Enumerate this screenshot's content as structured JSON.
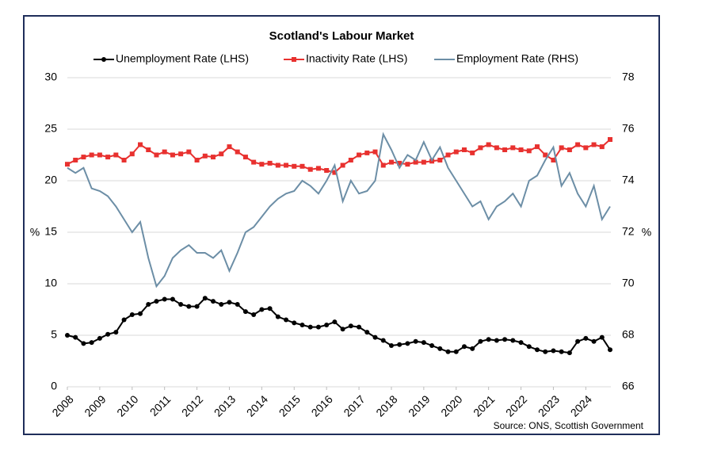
{
  "chart_data": {
    "type": "line",
    "title": "Scotland's Labour Market",
    "source": "Source: ONS, Scottish Government",
    "ylabel": "%",
    "y2label": "%",
    "x": [
      2008,
      2008.25,
      2008.5,
      2008.75,
      2009,
      2009.25,
      2009.5,
      2009.75,
      2010,
      2010.25,
      2010.5,
      2010.75,
      2011,
      2011.25,
      2011.5,
      2011.75,
      2012,
      2012.25,
      2012.5,
      2012.75,
      2013,
      2013.25,
      2013.5,
      2013.75,
      2014,
      2014.25,
      2014.5,
      2014.75,
      2015,
      2015.25,
      2015.5,
      2015.75,
      2016,
      2016.25,
      2016.5,
      2016.75,
      2017,
      2017.25,
      2017.5,
      2017.75,
      2018,
      2018.25,
      2018.5,
      2018.75,
      2019,
      2019.25,
      2019.5,
      2019.75,
      2020,
      2020.25,
      2020.5,
      2020.75,
      2021,
      2021.25,
      2021.5,
      2021.75,
      2022,
      2022.25,
      2022.5,
      2022.75,
      2023,
      2023.25,
      2023.5,
      2023.75,
      2024,
      2024.25,
      2024.5,
      2024.75
    ],
    "xlim": [
      2008,
      2024.75
    ],
    "xticks": [
      2008,
      2009,
      2010,
      2011,
      2012,
      2013,
      2014,
      2015,
      2016,
      2017,
      2018,
      2019,
      2020,
      2021,
      2022,
      2023,
      2024
    ],
    "ylim": [
      0,
      30
    ],
    "yticks": [
      0,
      5,
      10,
      15,
      20,
      25,
      30
    ],
    "y2lim": [
      66,
      78
    ],
    "y2ticks": [
      66,
      68,
      70,
      72,
      74,
      76,
      78
    ],
    "grid": true,
    "series": [
      {
        "name": "Unemployment Rate (LHS)",
        "color": "#000000",
        "marker": "circle",
        "values": [
          5.0,
          4.8,
          4.2,
          4.3,
          4.7,
          5.1,
          5.3,
          6.5,
          7.0,
          7.1,
          8.0,
          8.3,
          8.5,
          8.5,
          8.0,
          7.8,
          7.8,
          8.6,
          8.3,
          8.0,
          8.2,
          8.0,
          7.3,
          7.0,
          7.5,
          7.6,
          6.8,
          6.5,
          6.2,
          6.0,
          5.8,
          5.8,
          6.0,
          6.3,
          5.6,
          5.9,
          5.8,
          5.3,
          4.8,
          4.5,
          4.0,
          4.1,
          4.2,
          4.4,
          4.3,
          4.0,
          3.7,
          3.4,
          3.4,
          3.9,
          3.7,
          4.4,
          4.6,
          4.5,
          4.6,
          4.5,
          4.3,
          3.9,
          3.6,
          3.4,
          3.5,
          3.4,
          3.3,
          4.4,
          4.7,
          4.4,
          4.8,
          3.6
        ]
      },
      {
        "name": "Inactivity Rate (LHS)",
        "color": "#e8312f",
        "marker": "square",
        "values": [
          21.6,
          22.0,
          22.3,
          22.5,
          22.5,
          22.3,
          22.5,
          22.0,
          22.6,
          23.5,
          23.0,
          22.5,
          22.8,
          22.5,
          22.6,
          22.8,
          22.0,
          22.4,
          22.3,
          22.6,
          23.3,
          22.8,
          22.3,
          21.8,
          21.6,
          21.7,
          21.5,
          21.5,
          21.4,
          21.4,
          21.1,
          21.2,
          21.0,
          20.8,
          21.5,
          22.0,
          22.5,
          22.7,
          22.8,
          21.5,
          21.8,
          21.7,
          21.6,
          21.8,
          21.8,
          21.9,
          22.0,
          22.5,
          22.8,
          23.0,
          22.7,
          23.2,
          23.5,
          23.2,
          23.0,
          23.2,
          23.0,
          22.9,
          23.3,
          22.5,
          22.0,
          23.2,
          23.0,
          23.5,
          23.2,
          23.5,
          23.3,
          24.0
        ]
      },
      {
        "name": "Employment Rate (RHS)",
        "color": "#6c8ea6",
        "axis": "y2",
        "values": [
          74.5,
          74.3,
          74.5,
          73.7,
          73.6,
          73.4,
          73.0,
          72.5,
          72.0,
          72.4,
          71.0,
          69.9,
          70.3,
          71.0,
          71.3,
          71.5,
          71.2,
          71.2,
          71.0,
          71.3,
          70.5,
          71.2,
          72.0,
          72.2,
          72.6,
          73.0,
          73.3,
          73.5,
          73.6,
          74.0,
          73.8,
          73.5,
          74.0,
          74.6,
          73.2,
          74.0,
          73.5,
          73.6,
          74.0,
          75.8,
          75.2,
          74.5,
          75.0,
          74.8,
          75.5,
          74.8,
          75.3,
          74.5,
          74.0,
          73.5,
          73.0,
          73.2,
          72.5,
          73.0,
          73.2,
          73.5,
          73.0,
          74.0,
          74.2,
          74.8,
          75.3,
          73.8,
          74.3,
          73.5,
          73.0,
          73.8,
          72.5,
          73.0
        ]
      }
    ]
  }
}
